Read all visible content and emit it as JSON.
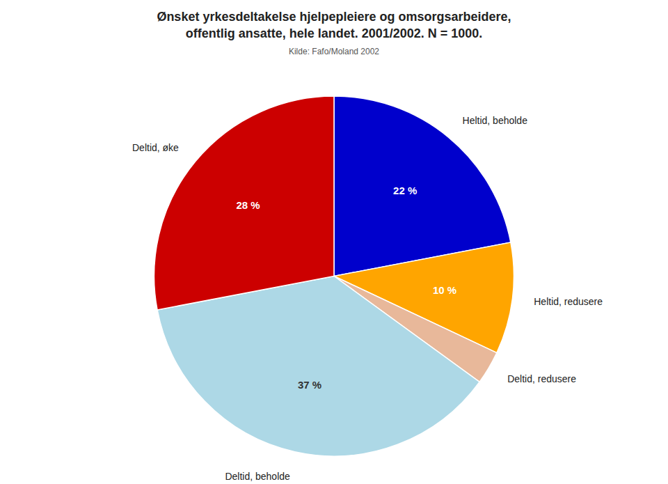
{
  "chart_data": {
    "type": "pie",
    "title": "Ønsket yrkesdeltakelse hjelpepleiere og omsorgsarbeidere,\noffentlig ansatte, hele landet. 2001/2002. N = 1000.",
    "subtitle": "Kilde: Fafo/Moland 2002",
    "categories": [
      "Heltid, beholde",
      "Heltid, redusere",
      "Deltid, redusere",
      "Deltid, beholde",
      "Deltid, øke"
    ],
    "values": [
      22,
      10,
      3,
      37,
      28
    ],
    "value_labels": [
      "22 %",
      "10 %",
      null,
      "37 %",
      "28 %"
    ],
    "data_labels": true,
    "colors": [
      "#0000CC",
      "#FFA500",
      "#E8B89A",
      "#ADD8E6",
      "#CC0000"
    ]
  }
}
